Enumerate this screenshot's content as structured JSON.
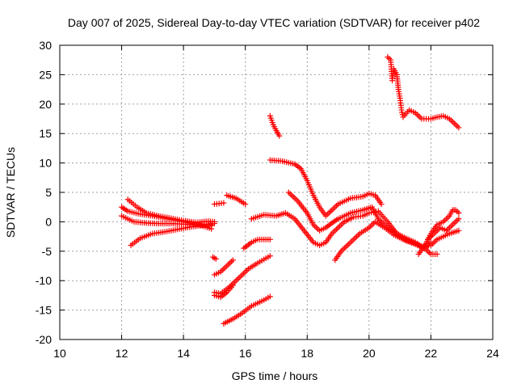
{
  "chart_data": {
    "type": "scatter",
    "title": "Day 007 of 2025, Sidereal Day-to-day VTEC variation (SDTVAR) for receiver p402",
    "xlabel": "GPS time / hours",
    "ylabel": "SDTVAR / TECUs",
    "xlim": [
      10,
      24
    ],
    "ylim": [
      -20,
      30
    ],
    "xticks": [
      "10",
      "12",
      "14",
      "16",
      "18",
      "20",
      "22",
      "24"
    ],
    "yticks": [
      "-20",
      "-15",
      "-10",
      "-5",
      "0",
      "5",
      "10",
      "15",
      "20",
      "25",
      "30"
    ],
    "grid": true,
    "marker": "+",
    "color": "#ff0000",
    "series": [
      {
        "points": [
          [
            12.0,
            2.5
          ],
          [
            12.2,
            1.8
          ],
          [
            12.6,
            1.3
          ],
          [
            13.0,
            1.0
          ],
          [
            13.4,
            0.6
          ],
          [
            13.8,
            0.2
          ],
          [
            14.2,
            -0.2
          ],
          [
            14.6,
            -0.5
          ],
          [
            14.9,
            -0.6
          ]
        ]
      },
      {
        "points": [
          [
            12.2,
            3.8
          ],
          [
            12.5,
            2.5
          ],
          [
            12.8,
            1.5
          ],
          [
            13.2,
            1.0
          ],
          [
            13.6,
            0.6
          ],
          [
            14.0,
            0.2
          ],
          [
            14.4,
            -0.1
          ],
          [
            14.8,
            0.1
          ],
          [
            15.0,
            0.0
          ]
        ]
      },
      {
        "points": [
          [
            12.0,
            1.0
          ],
          [
            12.2,
            0.5
          ],
          [
            12.4,
            0.0
          ],
          [
            12.8,
            -0.2
          ],
          [
            13.2,
            -0.3
          ],
          [
            13.6,
            -0.3
          ],
          [
            14.0,
            -0.4
          ],
          [
            14.5,
            -0.5
          ],
          [
            14.9,
            -1.2
          ]
        ]
      },
      {
        "points": [
          [
            12.3,
            -4.0
          ],
          [
            12.6,
            -2.8
          ],
          [
            13.0,
            -2.0
          ],
          [
            13.4,
            -1.7
          ],
          [
            13.8,
            -1.3
          ],
          [
            14.2,
            -0.9
          ],
          [
            14.6,
            -0.6
          ],
          [
            15.0,
            -0.3
          ]
        ]
      },
      {
        "points": [
          [
            14.95,
            -6.0
          ],
          [
            15.05,
            -6.3
          ]
        ]
      },
      {
        "points": [
          [
            15.0,
            -9.0
          ],
          [
            15.2,
            -8.5
          ],
          [
            15.4,
            -7.5
          ],
          [
            15.6,
            -6.5
          ]
        ]
      },
      {
        "points": [
          [
            15.0,
            -12.0
          ],
          [
            15.2,
            -12.2
          ],
          [
            15.5,
            -11.0
          ],
          [
            15.8,
            -9.5
          ],
          [
            16.1,
            -8.0
          ],
          [
            16.4,
            -7.0
          ],
          [
            16.8,
            -5.8
          ]
        ]
      },
      {
        "points": [
          [
            15.0,
            -12.5
          ],
          [
            15.2,
            -12.8
          ],
          [
            15.4,
            -12.0
          ],
          [
            15.6,
            -10.8
          ]
        ]
      },
      {
        "points": [
          [
            15.3,
            -17.3
          ],
          [
            15.6,
            -16.5
          ],
          [
            15.9,
            -15.5
          ],
          [
            16.2,
            -14.3
          ],
          [
            16.6,
            -13.3
          ],
          [
            16.8,
            -12.7
          ]
        ]
      },
      {
        "points": [
          [
            15.95,
            -4.5
          ],
          [
            16.2,
            -3.5
          ],
          [
            16.4,
            -3.0
          ],
          [
            16.8,
            -3.0
          ]
        ]
      },
      {
        "points": [
          [
            15.0,
            3.0
          ],
          [
            15.3,
            3.2
          ]
        ]
      },
      {
        "points": [
          [
            15.4,
            4.5
          ],
          [
            15.7,
            4.0
          ],
          [
            16.0,
            3.0
          ]
        ]
      },
      {
        "points": [
          [
            16.8,
            18.0
          ],
          [
            16.9,
            16.5
          ],
          [
            17.0,
            15.5
          ],
          [
            17.1,
            14.6
          ]
        ]
      },
      {
        "points": [
          [
            16.8,
            10.5
          ],
          [
            17.2,
            10.3
          ],
          [
            17.6,
            9.8
          ],
          [
            17.8,
            9.0
          ],
          [
            18.0,
            7.0
          ],
          [
            18.2,
            4.5
          ],
          [
            18.4,
            2.5
          ],
          [
            18.6,
            1.0
          ],
          [
            18.8,
            2.0
          ],
          [
            19.0,
            3.0
          ],
          [
            19.4,
            4.0
          ],
          [
            19.8,
            4.3
          ],
          [
            20.0,
            4.8
          ],
          [
            20.2,
            4.5
          ],
          [
            20.4,
            3.0
          ]
        ]
      },
      {
        "points": [
          [
            17.4,
            5.0
          ],
          [
            17.7,
            3.5
          ],
          [
            18.0,
            1.5
          ],
          [
            18.2,
            -0.5
          ],
          [
            18.4,
            -1.5
          ],
          [
            18.6,
            -1.0
          ],
          [
            18.8,
            -0.2
          ],
          [
            19.0,
            0.5
          ],
          [
            19.4,
            1.5
          ],
          [
            19.8,
            2.0
          ],
          [
            20.1,
            2.5
          ],
          [
            20.3,
            0.5
          ],
          [
            20.6,
            -1.0
          ],
          [
            20.9,
            -2.0
          ],
          [
            21.2,
            -2.8
          ],
          [
            21.5,
            -3.5
          ],
          [
            21.8,
            -4.5
          ],
          [
            22.0,
            -5.5
          ],
          [
            22.2,
            -5.5
          ]
        ]
      },
      {
        "points": [
          [
            16.2,
            0.5
          ],
          [
            16.6,
            1.2
          ],
          [
            17.0,
            1.0
          ],
          [
            17.3,
            1.5
          ],
          [
            17.6,
            0.5
          ],
          [
            17.9,
            -1.5
          ],
          [
            18.2,
            -3.5
          ],
          [
            18.4,
            -4.0
          ],
          [
            18.6,
            -3.5
          ],
          [
            18.8,
            -2.0
          ],
          [
            19.0,
            -1.0
          ],
          [
            19.2,
            0.0
          ],
          [
            19.5,
            0.8
          ],
          [
            19.8,
            1.0
          ],
          [
            20.0,
            1.5
          ],
          [
            20.3,
            1.8
          ],
          [
            20.6,
            0.0
          ],
          [
            20.9,
            -2.0
          ],
          [
            21.2,
            -3.2
          ],
          [
            21.5,
            -3.8
          ],
          [
            21.8,
            -4.5
          ],
          [
            22.0,
            -3.5
          ]
        ]
      },
      {
        "points": [
          [
            18.9,
            -6.5
          ],
          [
            19.1,
            -5.0
          ],
          [
            19.4,
            -3.5
          ],
          [
            19.7,
            -2.0
          ],
          [
            20.0,
            -1.0
          ],
          [
            20.2,
            0.0
          ],
          [
            20.5,
            -1.0
          ],
          [
            20.8,
            -2.2
          ],
          [
            21.1,
            -3.0
          ],
          [
            21.4,
            -3.5
          ],
          [
            21.7,
            -4.2
          ],
          [
            22.0,
            -4.0
          ],
          [
            22.2,
            -3.0
          ],
          [
            22.4,
            -2.5
          ],
          [
            22.6,
            -2.0
          ],
          [
            22.9,
            -1.5
          ]
        ]
      },
      {
        "points": [
          [
            21.6,
            -5.5
          ],
          [
            21.8,
            -4.0
          ],
          [
            22.0,
            -2.0
          ],
          [
            22.2,
            -0.5
          ],
          [
            22.4,
            0.0
          ],
          [
            22.6,
            1.0
          ],
          [
            22.7,
            2.0
          ],
          [
            22.8,
            2.0
          ],
          [
            22.9,
            1.5
          ]
        ]
      },
      {
        "points": [
          [
            21.9,
            -3.0
          ],
          [
            22.1,
            -2.0
          ],
          [
            22.3,
            -1.0
          ],
          [
            22.5,
            -1.5
          ],
          [
            22.7,
            -0.5
          ],
          [
            22.9,
            0.5
          ]
        ]
      },
      {
        "points": [
          [
            20.6,
            28.0
          ],
          [
            20.7,
            27.5
          ],
          [
            20.75,
            24.0
          ],
          [
            20.8,
            26.0
          ],
          [
            20.9,
            25.0
          ],
          [
            20.95,
            22.5
          ],
          [
            21.0,
            21.0
          ],
          [
            21.05,
            19.0
          ],
          [
            21.1,
            17.8
          ],
          [
            21.3,
            19.0
          ],
          [
            21.5,
            18.5
          ],
          [
            21.7,
            17.5
          ],
          [
            22.0,
            17.5
          ],
          [
            22.2,
            17.8
          ],
          [
            22.4,
            18.0
          ],
          [
            22.6,
            17.5
          ],
          [
            22.8,
            16.5
          ],
          [
            22.9,
            16.0
          ]
        ]
      }
    ]
  }
}
